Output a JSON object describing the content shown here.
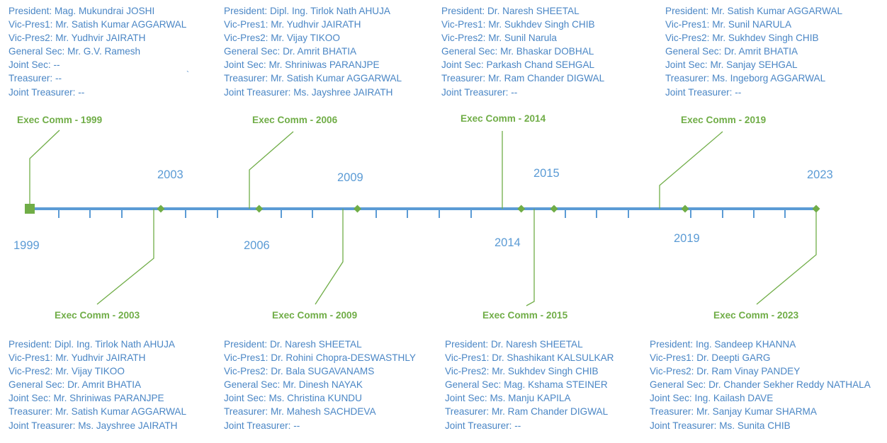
{
  "colors": {
    "axis": "#5b9bd5",
    "milestone": "#70ad47",
    "text": "#4a86c5"
  },
  "axis": {
    "start": 1999,
    "end": 2023
  },
  "year_labels": [
    "1999",
    "2003",
    "2006",
    "2009",
    "2014",
    "2015",
    "2019",
    "2023"
  ],
  "stray_mark": "`",
  "milestones": [
    {
      "year": 1999,
      "title": "Exec Comm - 1999",
      "marker": "square",
      "lines": [
        "President: Mag. Mukundrai JOSHI",
        "Vic-Pres1: Mr. Satish Kumar AGGARWAL",
        "Vic-Pres2: Mr. Yudhvir JAIRATH",
        "General Sec: Mr. G.V. Ramesh",
        "Joint Sec: --",
        "Treasurer: --",
        "Joint Treasurer: --"
      ]
    },
    {
      "year": 2003,
      "title": "Exec Comm - 2003",
      "marker": "diamond",
      "lines": [
        "President: Dipl. Ing. Tirlok Nath AHUJA",
        "Vic-Pres1: Mr. Yudhvir JAIRATH",
        "Vic-Pres2: Mr. Vijay TIKOO",
        "General Sec: Dr. Amrit BHATIA",
        "Joint Sec: Mr. Shriniwas PARANJPE",
        "Treasurer: Mr. Satish Kumar AGGARWAL",
        "Joint Treasurer: Ms. Jayshree JAIRATH"
      ]
    },
    {
      "year": 2006,
      "title": "Exec Comm - 2006",
      "marker": "diamond",
      "lines": [
        "President: Dipl. Ing. Tirlok Nath AHUJA",
        "Vic-Pres1: Mr. Yudhvir JAIRATH",
        "Vic-Pres2: Mr. Vijay TIKOO",
        "General Sec: Dr. Amrit BHATIA",
        "Joint Sec: Mr. Shriniwas PARANJPE",
        "Treasurer: Mr. Satish Kumar AGGARWAL",
        "Joint Treasurer: Ms. Jayshree JAIRATH"
      ]
    },
    {
      "year": 2009,
      "title": "Exec Comm - 2009",
      "marker": "diamond",
      "lines": [
        "President: Dr. Naresh SHEETAL",
        "Vic-Pres1: Dr. Rohini Chopra-DESWASTHLY",
        "Vic-Pres2: Dr. Bala SUGAVANAMS",
        "General Sec: Mr. Dinesh NAYAK",
        "Joint Sec: Ms. Christina KUNDU",
        "Treasurer: Mr. Mahesh SACHDEVA",
        "Joint Treasurer: --"
      ]
    },
    {
      "year": 2014,
      "title": "Exec Comm - 2014",
      "marker": "diamond",
      "lines": [
        "President: Dr. Naresh SHEETAL",
        "Vic-Pres1: Mr. Sukhdev Singh CHIB",
        "Vic-Pres2: Mr. Sunil Narula",
        "General Sec: Mr. Bhaskar DOBHAL",
        "Joint Sec: Parkash Chand SEHGAL",
        "Treasurer: Mr. Ram Chander DIGWAL",
        "Joint Treasurer: --"
      ]
    },
    {
      "year": 2015,
      "title": "Exec Comm - 2015",
      "marker": "diamond",
      "lines": [
        "President: Dr. Naresh SHEETAL",
        "Vic-Pres1: Dr. Shashikant KALSULKAR",
        "Vic-Pres2: Mr. Sukhdev Singh CHIB",
        "General Sec: Mag. Kshama STEINER",
        "Joint Sec: Ms. Manju KAPILA",
        "Treasurer: Mr. Ram Chander DIGWAL",
        "Joint Treasurer: --"
      ]
    },
    {
      "year": 2019,
      "title": "Exec Comm - 2019",
      "marker": "diamond",
      "lines": [
        "President: Mr. Satish Kumar AGGARWAL",
        "Vic-Pres1: Mr. Sunil NARULA",
        "Vic-Pres2: Mr. Sukhdev Singh CHIB",
        "General Sec: Dr. Amrit BHATIA",
        "Joint Sec: Mr. Sanjay SEHGAL",
        "Treasurer: Ms. Ingeborg AGGARWAL",
        "Joint Treasurer: --"
      ]
    },
    {
      "year": 2023,
      "title": "Exec Comm - 2023",
      "marker": "diamond",
      "lines": [
        "President: Ing. Sandeep KHANNA",
        "Vic-Pres1: Dr. Deepti GARG",
        "Vic-Pres2: Dr. Ram Vinay PANDEY",
        "General Sec: Dr. Chander Sekher Reddy NATHALA",
        "Joint Sec: Ing. Kailash DAVE",
        "Treasurer: Mr. Sanjay Kumar SHARMA",
        "Joint Treasurer: Ms. Sunita CHIB"
      ]
    }
  ]
}
